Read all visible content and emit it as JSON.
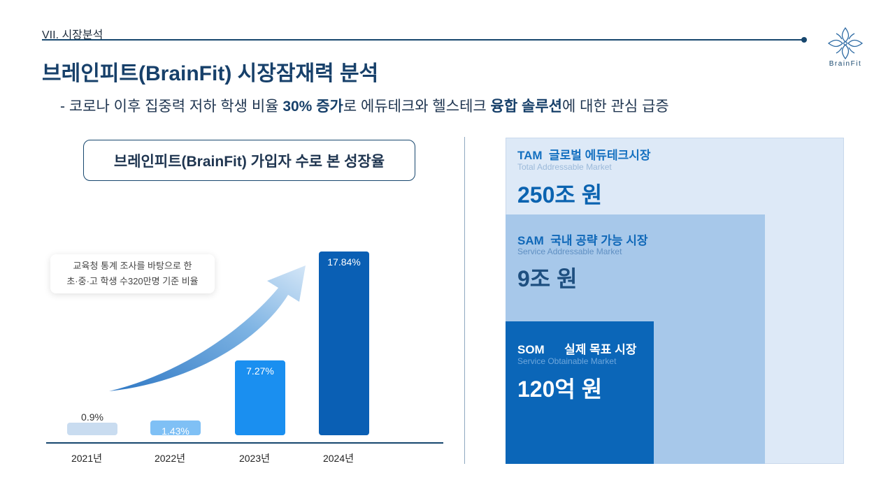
{
  "header": {
    "section": "VII. 시장분석",
    "title": "브레인피트(BrainFit) 시장잠재력 분석",
    "logo_text": "BrainFit"
  },
  "subtitle": {
    "p1": "- 코로나 이후 집중력 저하 학생 비율 ",
    "b1": "30% 증가",
    "p2": "로 에듀테크와 헬스테크 ",
    "b2": "융합 솔루션",
    "p3": "에 대한 관심 급증"
  },
  "chart_title": "브레인피트(BrainFit) 가입자 수로 본 성장율",
  "note": {
    "line1": "교육청 통계 조사를 바탕으로 한",
    "line2": "초·중·고 학생 수320만명 기준 비율"
  },
  "chart_data": {
    "type": "bar",
    "categories": [
      "2021년",
      "2022년",
      "2023년",
      "2024년"
    ],
    "values": [
      0.9,
      1.43,
      7.27,
      17.84
    ],
    "data_labels": [
      "0.9%",
      "1.43%",
      "7.27%",
      "17.84%"
    ],
    "colors": [
      "#c9dcf0",
      "#7fc0f5",
      "#1a8ff0",
      "#0a5fb4"
    ],
    "label_colors": [
      "#333333",
      "#ffffff",
      "#ffffff",
      "#ffffff"
    ],
    "ylim": [
      0,
      17.84
    ]
  },
  "market": {
    "tam": {
      "acronym": "TAM",
      "name": "글로벌 에듀테크시장",
      "english": "Total Addressable Market",
      "value": "250조 원",
      "color": "#dde9f7"
    },
    "sam": {
      "acronym": "SAM",
      "name": "국내 공략 가능 시장",
      "english": "Service Addressable Market",
      "value": "9조 원",
      "color": "#a7c8ea"
    },
    "som": {
      "acronym": "SOM",
      "name": "실제 목표 시장",
      "english": "Service Obtainable Market",
      "value": "120억 원",
      "color": "#0b66b8"
    }
  }
}
